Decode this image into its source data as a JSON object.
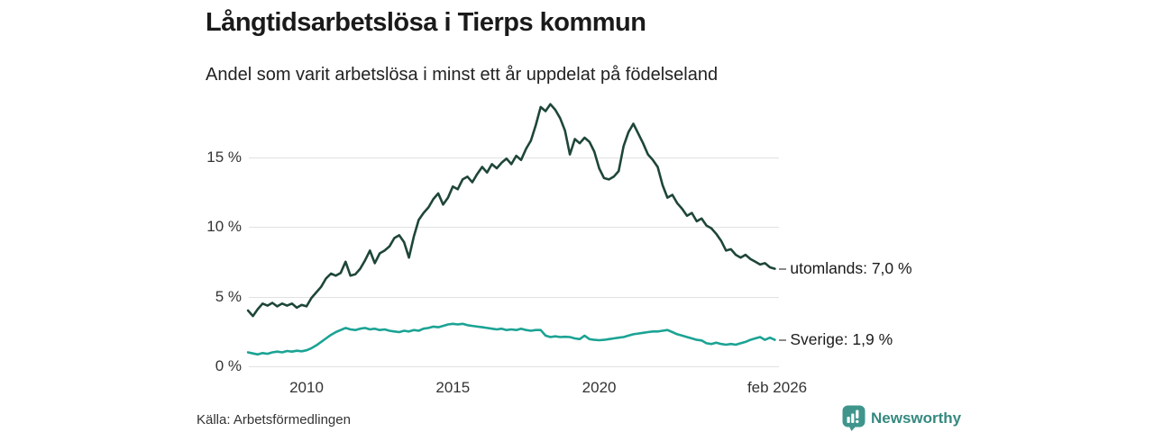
{
  "header": {
    "title": "Långtidsarbetslösa i Tierps kommun",
    "subtitle": "Andel som varit arbetslösa i minst ett år uppdelat på födelseland"
  },
  "footer": {
    "source": "Källa: Arbetsförmedlingen",
    "brand": "Newsworthy"
  },
  "colors": {
    "utomlands_line": "#1e4639",
    "sverige_line": "#1ba394",
    "gridline": "#e1e1e1",
    "tick_text": "#333333",
    "label_text": "#1a1a1a",
    "leader_dash": "#8a8a8a",
    "brand_teal": "#3f958c",
    "brand_text": "#35897f"
  },
  "chart_data": {
    "type": "line",
    "title": "Långtidsarbetslösa i Tierps kommun",
    "subtitle": "Andel som varit arbetslösa i minst ett år uppdelat på födelseland",
    "unit": "%",
    "grid": "horizontal-only",
    "legend_position": "right-end-labels",
    "x_axis": {
      "range": [
        2008.0,
        2026.25
      ],
      "ticks": [
        {
          "x": 2010,
          "label": "2010"
        },
        {
          "x": 2015,
          "label": "2015"
        },
        {
          "x": 2020,
          "label": "2020"
        },
        {
          "x": 2026.083,
          "label": "feb 2026"
        }
      ]
    },
    "y_axis": {
      "range": [
        0,
        19.5
      ],
      "ticks": [
        {
          "value": 0,
          "label": "0 %"
        },
        {
          "value": 5,
          "label": "5 %"
        },
        {
          "value": 10,
          "label": "10 %"
        },
        {
          "value": 15,
          "label": "15 %"
        }
      ]
    },
    "series": [
      {
        "name": "utomlands",
        "end_label": "utomlands: 7,0 %",
        "latest_value": "7,0 %",
        "color": "#1e4639",
        "start_year": 2008.0,
        "step_years": 0.166667,
        "values": [
          4.0,
          3.6,
          4.1,
          4.5,
          4.35,
          4.55,
          4.3,
          4.5,
          4.35,
          4.5,
          4.2,
          4.4,
          4.3,
          4.9,
          5.3,
          5.7,
          6.3,
          6.65,
          6.5,
          6.7,
          7.5,
          6.5,
          6.6,
          7.0,
          7.6,
          8.3,
          7.4,
          8.1,
          8.3,
          8.6,
          9.2,
          9.4,
          8.9,
          7.8,
          9.3,
          10.5,
          11.0,
          11.4,
          12.0,
          12.4,
          11.6,
          12.1,
          12.9,
          12.7,
          13.4,
          13.6,
          13.2,
          13.8,
          14.3,
          13.9,
          14.5,
          14.2,
          14.6,
          14.9,
          14.5,
          15.1,
          14.8,
          15.6,
          16.2,
          17.3,
          18.6,
          18.3,
          18.8,
          18.4,
          17.8,
          16.9,
          15.2,
          16.3,
          16.0,
          16.4,
          16.1,
          15.4,
          14.2,
          13.5,
          13.4,
          13.6,
          14.0,
          15.8,
          16.8,
          17.4,
          16.7,
          16.0,
          15.2,
          14.8,
          14.3,
          13.0,
          12.1,
          12.3,
          11.7,
          11.3,
          10.8,
          11.0,
          10.4,
          10.6,
          10.1,
          9.9,
          9.5,
          9.0,
          8.3,
          8.4,
          8.0,
          7.8,
          8.0,
          7.7,
          7.5,
          7.3,
          7.4,
          7.1,
          7.0
        ]
      },
      {
        "name": "Sverige",
        "end_label": "Sverige: 1,9 %",
        "latest_value": "1,9 %",
        "color": "#1ba394",
        "start_year": 2008.0,
        "step_years": 0.166667,
        "values": [
          1.0,
          0.92,
          0.85,
          0.95,
          0.9,
          1.0,
          1.05,
          1.0,
          1.1,
          1.05,
          1.12,
          1.08,
          1.15,
          1.3,
          1.5,
          1.75,
          2.0,
          2.25,
          2.45,
          2.6,
          2.75,
          2.65,
          2.6,
          2.7,
          2.75,
          2.65,
          2.7,
          2.6,
          2.65,
          2.55,
          2.5,
          2.45,
          2.55,
          2.5,
          2.6,
          2.55,
          2.7,
          2.75,
          2.85,
          2.8,
          2.9,
          3.0,
          3.05,
          3.0,
          3.05,
          2.95,
          2.9,
          2.85,
          2.8,
          2.75,
          2.7,
          2.65,
          2.7,
          2.6,
          2.65,
          2.6,
          2.7,
          2.6,
          2.55,
          2.6,
          2.6,
          2.2,
          2.1,
          2.15,
          2.1,
          2.12,
          2.1,
          2.0,
          1.95,
          2.2,
          1.95,
          1.9,
          1.87,
          1.9,
          1.95,
          2.0,
          2.05,
          2.1,
          2.2,
          2.3,
          2.35,
          2.4,
          2.45,
          2.5,
          2.5,
          2.55,
          2.6,
          2.45,
          2.3,
          2.2,
          2.1,
          2.0,
          1.9,
          1.85,
          1.65,
          1.6,
          1.7,
          1.6,
          1.55,
          1.6,
          1.55,
          1.65,
          1.75,
          1.9,
          2.0,
          2.1,
          1.9,
          2.05,
          1.9
        ]
      }
    ]
  }
}
